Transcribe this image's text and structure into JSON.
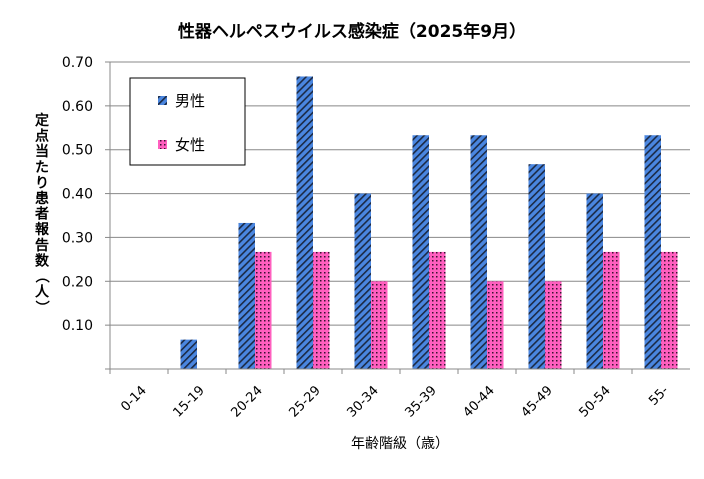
{
  "chart_data": {
    "type": "bar",
    "title": "性器ヘルペスウイルス感染症（2025年9月）",
    "xlabel": "年齢階級（歳）",
    "ylabel": "定点当たり患者報告数（人）",
    "categories": [
      "0-14",
      "15-19",
      "20-24",
      "25-29",
      "30-34",
      "35-39",
      "40-44",
      "45-49",
      "50-54",
      "55-"
    ],
    "series": [
      {
        "name": "男性",
        "color": "#4a86e0",
        "pattern": "diagonal-stripes",
        "values": [
          0,
          0.067,
          0.333,
          0.667,
          0.4,
          0.533,
          0.533,
          0.467,
          0.4,
          0.533
        ]
      },
      {
        "name": "女性",
        "color": "#ff5fbf",
        "pattern": "dotted",
        "values": [
          0,
          0,
          0.267,
          0.267,
          0.2,
          0.267,
          0.2,
          0.2,
          0.267,
          0.267
        ]
      }
    ],
    "ylim": [
      0,
      0.7
    ],
    "yticks": [
      "0.10",
      "0.20",
      "0.30",
      "0.40",
      "0.50",
      "0.60",
      "0.70"
    ],
    "grid": true,
    "legend_position": "top-left"
  }
}
